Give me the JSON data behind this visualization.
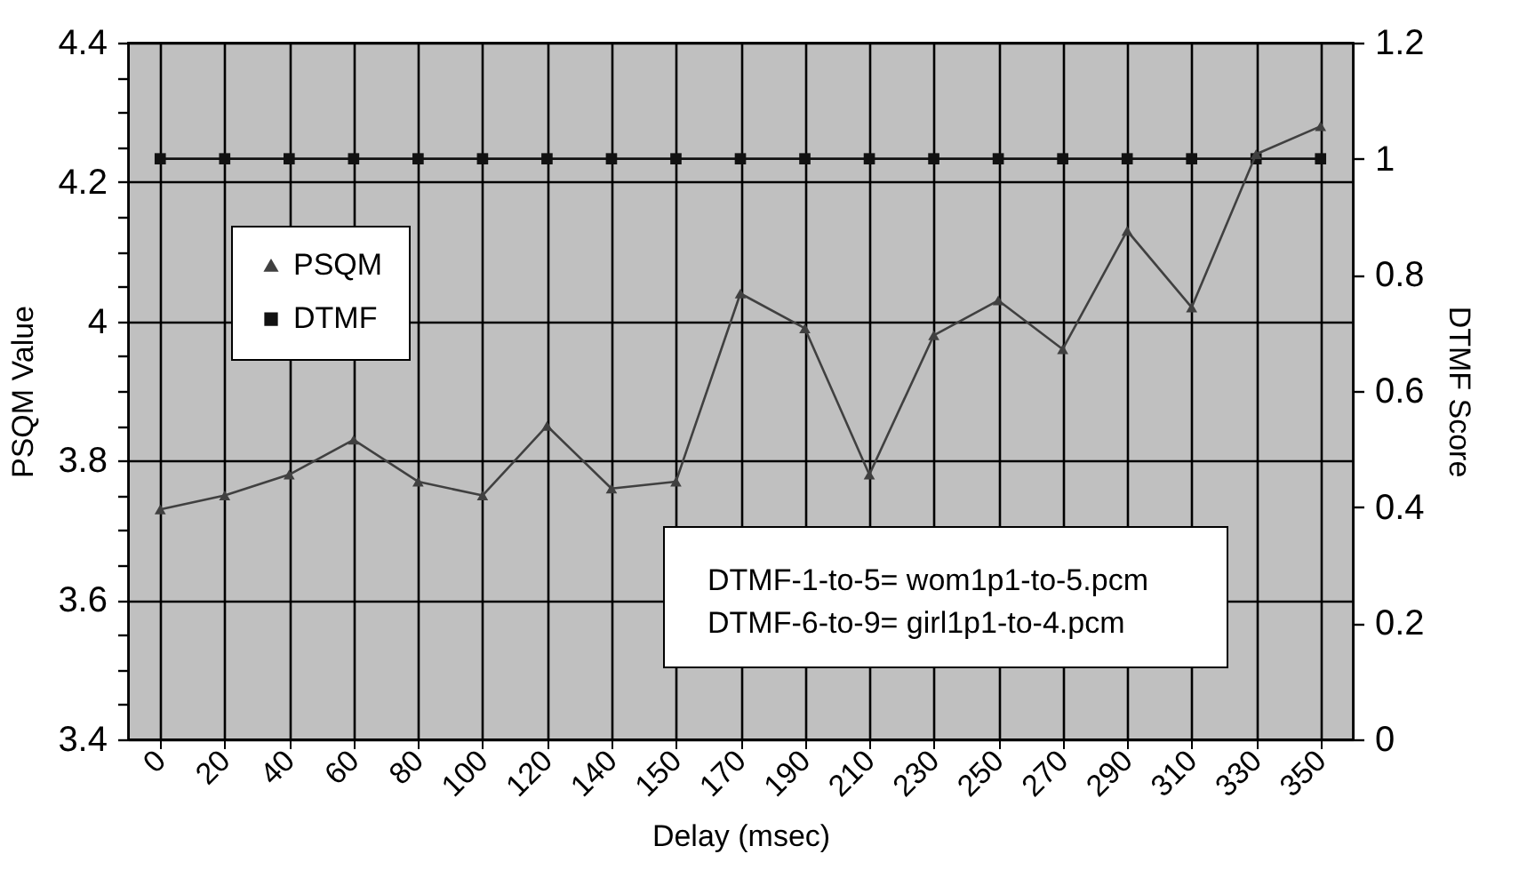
{
  "chart_data": {
    "type": "line",
    "xlabel": "Delay (msec)",
    "ylabel": "PSQM Value",
    "y2label": "DTMF Score",
    "categories": [
      "0",
      "20",
      "40",
      "60",
      "80",
      "100",
      "120",
      "140",
      "150",
      "170",
      "190",
      "210",
      "230",
      "250",
      "270",
      "290",
      "310",
      "330",
      "350"
    ],
    "series": [
      {
        "name": "PSQM",
        "color": "#404040",
        "marker": "triangle",
        "values": [
          3.73,
          3.75,
          3.78,
          3.83,
          3.77,
          3.75,
          3.85,
          3.76,
          3.77,
          4.04,
          3.99,
          3.78,
          3.98,
          4.03,
          3.96,
          4.13,
          4.02,
          4.24,
          4.28
        ]
      },
      {
        "name": "DTMF",
        "color": "#111111",
        "marker": "square",
        "axis": "y2",
        "values": [
          1,
          1,
          1,
          1,
          1,
          1,
          1,
          1,
          1,
          1,
          1,
          1,
          1,
          1,
          1,
          1,
          1,
          1,
          1
        ]
      }
    ],
    "ylim": [
      3.4,
      4.4
    ],
    "yticks": [
      3.4,
      {
        "value": 3.45,
        "label": null
      },
      {
        "value": 3.5,
        "label": null
      },
      {
        "value": 3.55,
        "label": null
      },
      3.6,
      {
        "value": 3.65,
        "label": null
      },
      {
        "value": 3.7,
        "label": null
      },
      {
        "value": 3.75,
        "label": null
      },
      3.8,
      {
        "value": 3.85,
        "label": null
      },
      {
        "value": 3.9,
        "label": null
      },
      {
        "value": 3.95,
        "label": null
      },
      4,
      {
        "value": 4.05,
        "label": null
      },
      {
        "value": 4.1,
        "label": null
      },
      {
        "value": 4.15,
        "label": null
      },
      4.2,
      {
        "value": 4.25,
        "label": null
      },
      {
        "value": 4.3,
        "label": null
      },
      {
        "value": 4.35,
        "label": null
      },
      4.4
    ],
    "y2lim": [
      0,
      1.2
    ],
    "y2ticks": [
      0,
      0.2,
      0.4,
      0.6,
      0.8,
      1,
      1.2
    ],
    "grid": true,
    "legend": "top left",
    "annotations": [
      "DTMF-1-to-5= wom1p1-to-5.pcm",
      "DTMF-6-to-9= girl1p1-to-4.pcm"
    ]
  }
}
